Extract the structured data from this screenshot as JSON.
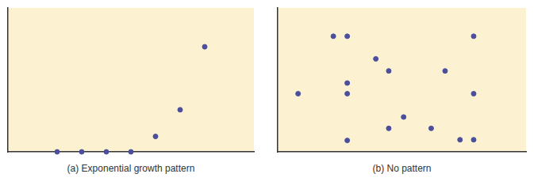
{
  "chart_data": [
    {
      "type": "scatter",
      "title": "(a) Exponential growth pattern",
      "x": [
        2.0,
        3.0,
        4.0,
        5.0,
        6.0,
        7.0,
        8.0
      ],
      "values": [
        0,
        0,
        0,
        0,
        1.07,
        2.92,
        7.3
      ],
      "xlim": [
        0,
        10
      ],
      "ylim": [
        0,
        10
      ],
      "tick_labels": false,
      "grid": false,
      "color": "#4b4f9c",
      "marker": "circle"
    },
    {
      "type": "scatter",
      "title": "(b) No pattern",
      "x": [
        0.82,
        2.24,
        2.8,
        2.8,
        2.8,
        2.8,
        3.95,
        4.47,
        4.47,
        5.07,
        6.18,
        6.74,
        7.34,
        7.89,
        7.89,
        7.89
      ],
      "values": [
        4.04,
        8.03,
        8.03,
        4.78,
        4.04,
        0.79,
        6.46,
        5.62,
        1.63,
        2.42,
        1.63,
        5.62,
        0.84,
        8.03,
        4.04,
        0.84
      ],
      "xlim": [
        0,
        10
      ],
      "ylim": [
        0,
        10
      ],
      "tick_labels": false,
      "grid": false,
      "color": "#4b4f9c",
      "marker": "circle"
    }
  ]
}
